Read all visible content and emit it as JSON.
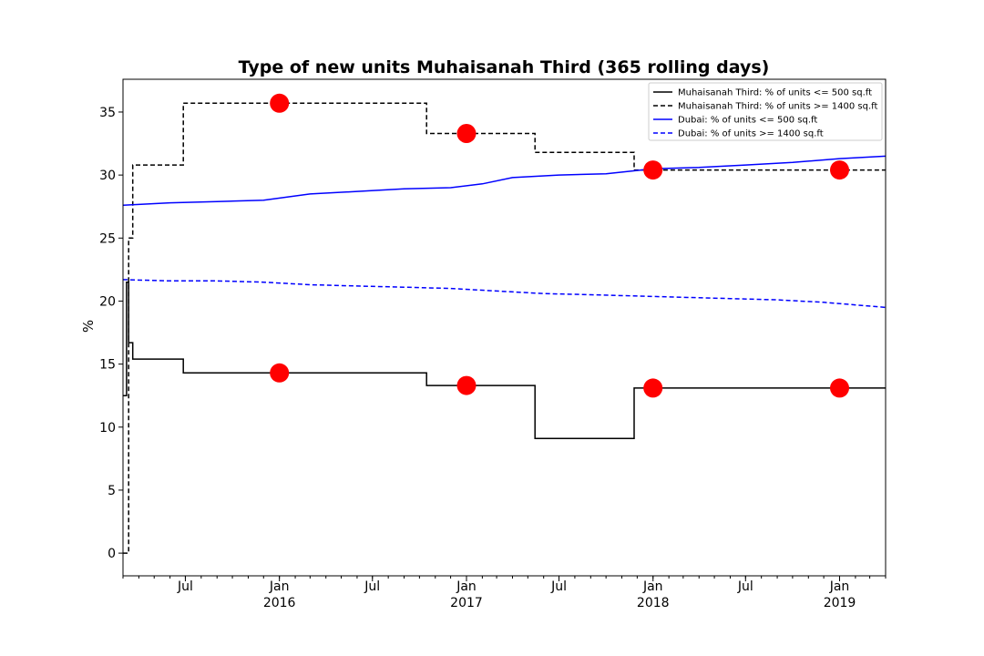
{
  "chart_data": {
    "type": "line",
    "title": "Type of new units Muhaisanah Third (365 rolling days)",
    "xlabel": "",
    "ylabel": "%",
    "ylim": [
      -1.8,
      37.6
    ],
    "xlim": [
      "2015-03-01",
      "2019-04-01"
    ],
    "yticks": [
      0,
      5,
      10,
      15,
      20,
      25,
      30,
      35
    ],
    "xticks": [
      {
        "date": "2015-07-01",
        "label": "Jul",
        "sublabel": ""
      },
      {
        "date": "2016-01-01",
        "label": "Jan",
        "sublabel": "2016"
      },
      {
        "date": "2016-07-01",
        "label": "Jul",
        "sublabel": ""
      },
      {
        "date": "2017-01-01",
        "label": "Jan",
        "sublabel": "2017"
      },
      {
        "date": "2017-07-01",
        "label": "Jul",
        "sublabel": ""
      },
      {
        "date": "2018-01-01",
        "label": "Jan",
        "sublabel": "2018"
      },
      {
        "date": "2018-07-01",
        "label": "Jul",
        "sublabel": ""
      },
      {
        "date": "2019-01-01",
        "label": "Jan",
        "sublabel": "2019"
      }
    ],
    "grid": false,
    "legend_position": "top-right",
    "series": [
      {
        "name": "Muhaisanah Third: % of units <= 500 sq.ft",
        "color": "#000000",
        "dash": "solid",
        "step": true,
        "x": [
          "2015-03-01",
          "2015-03-08",
          "2015-03-12",
          "2015-03-20",
          "2015-06-27",
          "2016-10-15",
          "2017-05-15",
          "2017-11-25",
          "2019-04-01"
        ],
        "y": [
          12.5,
          21.5,
          16.7,
          15.4,
          14.3,
          13.3,
          9.1,
          13.1,
          13.1
        ]
      },
      {
        "name": "Muhaisanah Third: % of units >= 1400 sq.ft",
        "color": "#000000",
        "dash": "dashed",
        "step": true,
        "x": [
          "2015-03-01",
          "2015-03-12",
          "2015-03-20",
          "2015-06-27",
          "2016-10-15",
          "2017-05-15",
          "2017-11-25",
          "2019-04-01"
        ],
        "y": [
          0,
          25.0,
          30.8,
          35.7,
          33.3,
          31.8,
          30.4,
          30.4
        ]
      },
      {
        "name": "Dubai: % of units <= 500 sq.ft",
        "color": "#0000ff",
        "dash": "solid",
        "step": false,
        "x": [
          "2015-03-01",
          "2015-06-01",
          "2015-09-01",
          "2015-12-01",
          "2016-03-01",
          "2016-06-01",
          "2016-09-01",
          "2016-12-01",
          "2017-02-01",
          "2017-04-01",
          "2017-07-01",
          "2017-10-01",
          "2018-01-01",
          "2018-04-01",
          "2018-07-01",
          "2018-10-01",
          "2019-01-01",
          "2019-04-01"
        ],
        "y": [
          27.6,
          27.8,
          27.9,
          28.0,
          28.5,
          28.7,
          28.9,
          29.0,
          29.3,
          29.8,
          30.0,
          30.1,
          30.5,
          30.6,
          30.8,
          31.0,
          31.3,
          31.5
        ]
      },
      {
        "name": "Dubai: % of units >= 1400 sq.ft",
        "color": "#0000ff",
        "dash": "dashed",
        "step": false,
        "x": [
          "2015-03-01",
          "2015-06-01",
          "2015-09-01",
          "2015-12-01",
          "2016-03-01",
          "2016-06-01",
          "2016-09-01",
          "2016-12-01",
          "2017-03-01",
          "2017-06-01",
          "2017-09-01",
          "2017-12-01",
          "2018-03-01",
          "2018-06-01",
          "2018-09-01",
          "2018-12-01",
          "2019-04-01"
        ],
        "y": [
          21.7,
          21.6,
          21.6,
          21.5,
          21.3,
          21.2,
          21.1,
          21.0,
          20.8,
          20.6,
          20.5,
          20.4,
          20.3,
          20.2,
          20.1,
          19.9,
          19.5
        ]
      }
    ],
    "markers": {
      "color": "#ff0000",
      "points": [
        {
          "x": "2016-01-01",
          "y": 35.7
        },
        {
          "x": "2017-01-01",
          "y": 33.3
        },
        {
          "x": "2018-01-01",
          "y": 30.4
        },
        {
          "x": "2019-01-01",
          "y": 30.4
        },
        {
          "x": "2016-01-01",
          "y": 14.3
        },
        {
          "x": "2017-01-01",
          "y": 13.3
        },
        {
          "x": "2018-01-01",
          "y": 13.1
        },
        {
          "x": "2019-01-01",
          "y": 13.1
        }
      ]
    }
  }
}
